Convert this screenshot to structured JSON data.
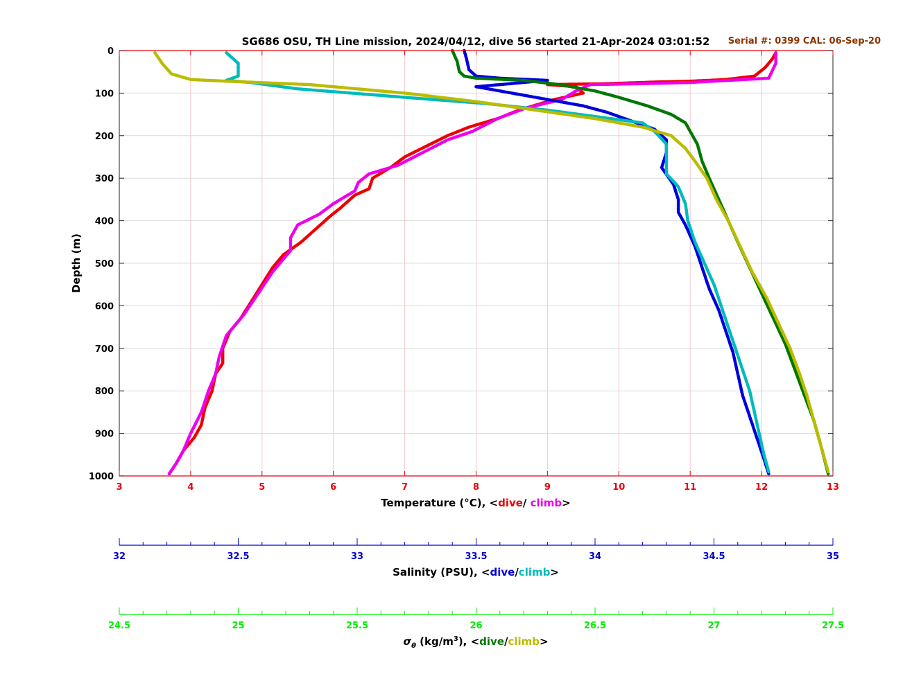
{
  "chart_data": {
    "type": "scatter",
    "title": "SG686 OSU, TH Line mission, 2024/04/12, dive 56 started 21-Apr-2024 03:01:52",
    "annotation": "Serial #: 0399  CAL: 06-Sep-20",
    "ylabel": "Depth (m)",
    "ylim": [
      0,
      1000
    ],
    "y_reversed": true,
    "y_ticks": [
      "0",
      "100",
      "200",
      "300",
      "400",
      "500",
      "600",
      "700",
      "800",
      "900",
      "1000"
    ],
    "grid": true,
    "axes": {
      "temperature": {
        "label_main": "Temperature (°C), <",
        "dive_word": "dive",
        "sep": "/ ",
        "climb_word": "climb",
        "close": ">",
        "xlim": [
          3,
          13
        ],
        "ticks": [
          "3",
          "4",
          "5",
          "6",
          "7",
          "8",
          "9",
          "10",
          "11",
          "12",
          "13"
        ],
        "color": "#e8000b"
      },
      "salinity": {
        "label_main": "Salinity (PSU), <",
        "dive_word": "dive",
        "sep": "/",
        "climb_word": "climb",
        "close": ">",
        "xlim": [
          32,
          35
        ],
        "ticks": [
          "32",
          "32.5",
          "33",
          "33.5",
          "34",
          "34.5",
          "35"
        ],
        "color": "#0000cc"
      },
      "density": {
        "label_sym": "σ",
        "label_sub": "θ",
        "label_unit_a": " (kg/m",
        "label_sup": "3",
        "label_unit_b": "), <",
        "dive_word": "dive",
        "sep": "/",
        "climb_word": "climb",
        "close": ">",
        "xlim": [
          24.5,
          27.5
        ],
        "ticks": [
          "24.5",
          "25",
          "25.5",
          "26",
          "26.5",
          "27",
          "27.5"
        ],
        "color": "#00ee00"
      }
    },
    "series": [
      {
        "axis": "temperature",
        "phase": "dive",
        "color": "#ee0000",
        "points": [
          [
            12.2,
            5
          ],
          [
            12.15,
            20
          ],
          [
            12.05,
            40
          ],
          [
            11.9,
            60
          ],
          [
            11.5,
            68
          ],
          [
            11.0,
            72
          ],
          [
            10.5,
            74
          ],
          [
            9.8,
            78
          ],
          [
            9.0,
            80
          ],
          [
            9.4,
            85
          ],
          [
            9.5,
            100
          ],
          [
            9.1,
            115
          ],
          [
            8.9,
            125
          ],
          [
            8.6,
            140
          ],
          [
            8.3,
            160
          ],
          [
            7.9,
            180
          ],
          [
            7.6,
            200
          ],
          [
            7.3,
            225
          ],
          [
            7.0,
            250
          ],
          [
            6.8,
            275
          ],
          [
            6.55,
            300
          ],
          [
            6.5,
            325
          ],
          [
            6.3,
            340
          ],
          [
            6.1,
            370
          ],
          [
            5.95,
            390
          ],
          [
            5.75,
            420
          ],
          [
            5.55,
            450
          ],
          [
            5.3,
            480
          ],
          [
            5.15,
            510
          ],
          [
            5.0,
            550
          ],
          [
            4.85,
            590
          ],
          [
            4.7,
            630
          ],
          [
            4.55,
            660
          ],
          [
            4.45,
            700
          ],
          [
            4.45,
            735
          ],
          [
            4.35,
            760
          ],
          [
            4.3,
            800
          ],
          [
            4.2,
            840
          ],
          [
            4.15,
            880
          ],
          [
            4.05,
            910
          ],
          [
            3.9,
            940
          ],
          [
            3.8,
            970
          ],
          [
            3.7,
            995
          ]
        ]
      },
      {
        "axis": "temperature",
        "phase": "climb",
        "color": "#ee00ee",
        "points": [
          [
            3.7,
            995
          ],
          [
            3.8,
            970
          ],
          [
            3.9,
            940
          ],
          [
            4.0,
            900
          ],
          [
            4.15,
            850
          ],
          [
            4.25,
            800
          ],
          [
            4.35,
            760
          ],
          [
            4.4,
            720
          ],
          [
            4.5,
            670
          ],
          [
            4.75,
            620
          ],
          [
            4.95,
            570
          ],
          [
            5.15,
            520
          ],
          [
            5.4,
            470
          ],
          [
            5.4,
            440
          ],
          [
            5.5,
            410
          ],
          [
            5.8,
            385
          ],
          [
            6.0,
            360
          ],
          [
            6.3,
            330
          ],
          [
            6.35,
            310
          ],
          [
            6.5,
            290
          ],
          [
            6.9,
            270
          ],
          [
            7.25,
            240
          ],
          [
            7.6,
            210
          ],
          [
            7.95,
            190
          ],
          [
            8.3,
            160
          ],
          [
            8.7,
            135
          ],
          [
            9.2,
            115
          ],
          [
            9.4,
            95
          ],
          [
            9.6,
            80
          ],
          [
            10.3,
            78
          ],
          [
            11.0,
            75
          ],
          [
            12.1,
            65
          ],
          [
            12.2,
            30
          ],
          [
            12.2,
            5
          ]
        ]
      },
      {
        "axis": "salinity",
        "phase": "dive",
        "color": "#0000dd",
        "points": [
          [
            33.45,
            0
          ],
          [
            33.46,
            20
          ],
          [
            33.47,
            45
          ],
          [
            33.5,
            60
          ],
          [
            33.6,
            65
          ],
          [
            33.8,
            70
          ],
          [
            33.5,
            85
          ],
          [
            33.6,
            95
          ],
          [
            33.75,
            110
          ],
          [
            33.95,
            130
          ],
          [
            34.05,
            145
          ],
          [
            34.15,
            165
          ],
          [
            34.25,
            185
          ],
          [
            34.3,
            210
          ],
          [
            34.3,
            240
          ],
          [
            34.28,
            275
          ],
          [
            34.33,
            315
          ],
          [
            34.35,
            350
          ],
          [
            34.35,
            380
          ],
          [
            34.38,
            410
          ],
          [
            34.42,
            460
          ],
          [
            34.45,
            510
          ],
          [
            34.48,
            560
          ],
          [
            34.52,
            610
          ],
          [
            34.55,
            660
          ],
          [
            34.58,
            710
          ],
          [
            34.6,
            760
          ],
          [
            34.62,
            810
          ],
          [
            34.65,
            860
          ],
          [
            34.68,
            910
          ],
          [
            34.71,
            960
          ],
          [
            34.73,
            995
          ]
        ]
      },
      {
        "axis": "salinity",
        "phase": "climb",
        "color": "#00bbbb",
        "points": [
          [
            34.73,
            990
          ],
          [
            34.71,
            950
          ],
          [
            34.69,
            900
          ],
          [
            34.67,
            850
          ],
          [
            34.65,
            800
          ],
          [
            34.62,
            750
          ],
          [
            34.59,
            700
          ],
          [
            34.56,
            650
          ],
          [
            34.53,
            600
          ],
          [
            34.5,
            550
          ],
          [
            34.46,
            500
          ],
          [
            34.42,
            450
          ],
          [
            34.39,
            400
          ],
          [
            34.38,
            360
          ],
          [
            34.35,
            320
          ],
          [
            34.3,
            290
          ],
          [
            34.3,
            250
          ],
          [
            34.3,
            220
          ],
          [
            34.25,
            190
          ],
          [
            34.2,
            170
          ],
          [
            34.0,
            155
          ],
          [
            33.8,
            140
          ],
          [
            33.55,
            125
          ],
          [
            33.2,
            110
          ],
          [
            32.75,
            90
          ],
          [
            32.55,
            75
          ],
          [
            32.45,
            70
          ],
          [
            32.5,
            60
          ],
          [
            32.5,
            30
          ],
          [
            32.45,
            5
          ]
        ]
      },
      {
        "axis": "density",
        "phase": "dive",
        "color": "#007700",
        "points": [
          [
            25.9,
            0
          ],
          [
            25.92,
            25
          ],
          [
            25.93,
            50
          ],
          [
            25.95,
            60
          ],
          [
            26.0,
            65
          ],
          [
            26.2,
            70
          ],
          [
            26.35,
            80
          ],
          [
            26.5,
            95
          ],
          [
            26.6,
            110
          ],
          [
            26.72,
            130
          ],
          [
            26.82,
            150
          ],
          [
            26.88,
            170
          ],
          [
            26.9,
            190
          ],
          [
            26.93,
            220
          ],
          [
            26.95,
            260
          ],
          [
            26.98,
            300
          ],
          [
            27.02,
            350
          ],
          [
            27.06,
            400
          ],
          [
            27.1,
            450
          ],
          [
            27.15,
            510
          ],
          [
            27.2,
            570
          ],
          [
            27.25,
            630
          ],
          [
            27.3,
            690
          ],
          [
            27.34,
            750
          ],
          [
            27.38,
            810
          ],
          [
            27.42,
            870
          ],
          [
            27.45,
            930
          ],
          [
            27.48,
            995
          ]
        ]
      },
      {
        "axis": "density",
        "phase": "climb",
        "color": "#bbbb00",
        "points": [
          [
            27.48,
            990
          ],
          [
            27.45,
            930
          ],
          [
            27.42,
            870
          ],
          [
            27.39,
            810
          ],
          [
            27.36,
            760
          ],
          [
            27.32,
            700
          ],
          [
            27.27,
            640
          ],
          [
            27.22,
            580
          ],
          [
            27.16,
            520
          ],
          [
            27.11,
            460
          ],
          [
            27.06,
            400
          ],
          [
            27.01,
            350
          ],
          [
            26.97,
            300
          ],
          [
            26.92,
            260
          ],
          [
            26.88,
            230
          ],
          [
            26.82,
            200
          ],
          [
            26.7,
            180
          ],
          [
            26.5,
            160
          ],
          [
            26.25,
            140
          ],
          [
            26.0,
            120
          ],
          [
            25.7,
            100
          ],
          [
            25.3,
            80
          ],
          [
            24.95,
            72
          ],
          [
            24.8,
            68
          ],
          [
            24.72,
            55
          ],
          [
            24.68,
            30
          ],
          [
            24.65,
            5
          ]
        ]
      }
    ]
  }
}
